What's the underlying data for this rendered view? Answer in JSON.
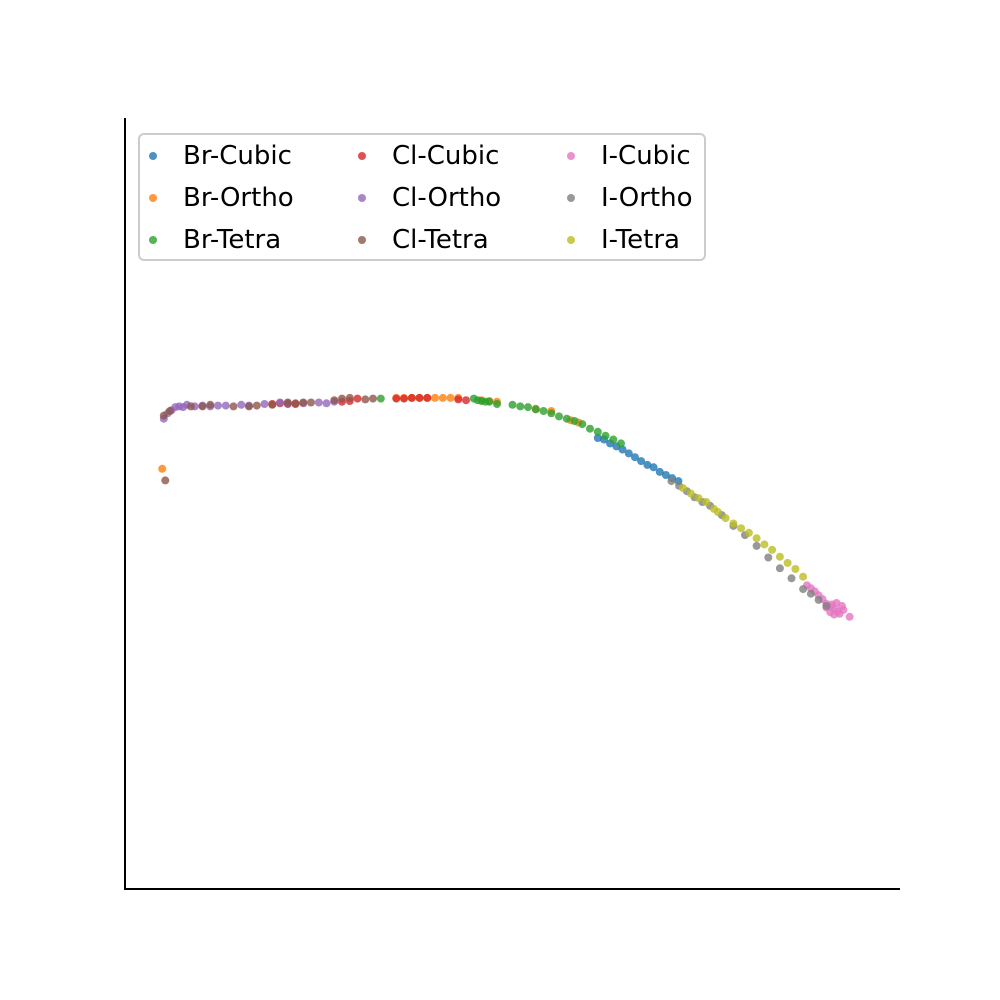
{
  "chart_data": {
    "type": "scatter",
    "title": "",
    "xlabel": "",
    "ylabel": "",
    "xlim": [
      0,
      1
    ],
    "ylim": [
      0,
      1
    ],
    "grid": false,
    "legend": {
      "placement": "top-left",
      "columns": 3
    },
    "series": [
      {
        "name": "Br-Cubic",
        "color": "#1f77b4",
        "points": [
          [
            0.61,
            0.585
          ],
          [
            0.618,
            0.583
          ],
          [
            0.626,
            0.578
          ],
          [
            0.634,
            0.574
          ],
          [
            0.642,
            0.57
          ],
          [
            0.65,
            0.565
          ],
          [
            0.658,
            0.56
          ],
          [
            0.666,
            0.555
          ],
          [
            0.674,
            0.55
          ],
          [
            0.682,
            0.547
          ],
          [
            0.69,
            0.541
          ],
          [
            0.698,
            0.537
          ],
          [
            0.706,
            0.533
          ],
          [
            0.714,
            0.529
          ]
        ]
      },
      {
        "name": "Br-Ortho",
        "color": "#ff7f0e",
        "points": [
          [
            0.048,
            0.545
          ],
          [
            0.35,
            0.637
          ],
          [
            0.36,
            0.637
          ],
          [
            0.37,
            0.637
          ],
          [
            0.38,
            0.637
          ],
          [
            0.39,
            0.637
          ],
          [
            0.4,
            0.637
          ],
          [
            0.41,
            0.637
          ],
          [
            0.42,
            0.637
          ],
          [
            0.43,
            0.637
          ],
          [
            0.46,
            0.634
          ],
          [
            0.47,
            0.633
          ],
          [
            0.48,
            0.632
          ],
          [
            0.53,
            0.623
          ],
          [
            0.55,
            0.62
          ],
          [
            0.575,
            0.608
          ],
          [
            0.585,
            0.605
          ]
        ]
      },
      {
        "name": "Br-Tetra",
        "color": "#2ca02c",
        "points": [
          [
            0.33,
            0.636
          ],
          [
            0.45,
            0.636
          ],
          [
            0.455,
            0.634
          ],
          [
            0.46,
            0.633
          ],
          [
            0.465,
            0.632
          ],
          [
            0.47,
            0.632
          ],
          [
            0.48,
            0.629
          ],
          [
            0.5,
            0.628
          ],
          [
            0.51,
            0.626
          ],
          [
            0.52,
            0.625
          ],
          [
            0.53,
            0.622
          ],
          [
            0.54,
            0.62
          ],
          [
            0.55,
            0.617
          ],
          [
            0.56,
            0.613
          ],
          [
            0.57,
            0.61
          ],
          [
            0.58,
            0.607
          ],
          [
            0.59,
            0.603
          ],
          [
            0.6,
            0.597
          ],
          [
            0.61,
            0.593
          ],
          [
            0.62,
            0.588
          ],
          [
            0.63,
            0.583
          ],
          [
            0.64,
            0.578
          ]
        ]
      },
      {
        "name": "Cl-Cubic",
        "color": "#d62728",
        "points": [
          [
            0.19,
            0.629
          ],
          [
            0.2,
            0.63
          ],
          [
            0.21,
            0.629
          ],
          [
            0.22,
            0.629
          ],
          [
            0.28,
            0.632
          ],
          [
            0.29,
            0.633
          ],
          [
            0.3,
            0.636
          ],
          [
            0.35,
            0.636
          ],
          [
            0.36,
            0.636
          ],
          [
            0.37,
            0.637
          ],
          [
            0.38,
            0.637
          ],
          [
            0.39,
            0.637
          ],
          [
            0.43,
            0.635
          ],
          [
            0.44,
            0.634
          ]
        ]
      },
      {
        "name": "Cl-Ortho",
        "color": "#9467bd",
        "points": [
          [
            0.05,
            0.61
          ],
          [
            0.055,
            0.617
          ],
          [
            0.06,
            0.621
          ],
          [
            0.065,
            0.625
          ],
          [
            0.07,
            0.626
          ],
          [
            0.075,
            0.625
          ],
          [
            0.08,
            0.628
          ],
          [
            0.09,
            0.626
          ],
          [
            0.1,
            0.627
          ],
          [
            0.11,
            0.626
          ],
          [
            0.12,
            0.627
          ],
          [
            0.13,
            0.627
          ],
          [
            0.15,
            0.628
          ],
          [
            0.16,
            0.627
          ],
          [
            0.18,
            0.629
          ],
          [
            0.2,
            0.631
          ],
          [
            0.21,
            0.63
          ],
          [
            0.23,
            0.63
          ],
          [
            0.25,
            0.631
          ],
          [
            0.26,
            0.63
          ],
          [
            0.27,
            0.632
          ]
        ]
      },
      {
        "name": "Cl-Tetra",
        "color": "#8c564b",
        "points": [
          [
            0.052,
            0.53
          ],
          [
            0.05,
            0.614
          ],
          [
            0.058,
            0.62
          ],
          [
            0.085,
            0.626
          ],
          [
            0.1,
            0.626
          ],
          [
            0.11,
            0.628
          ],
          [
            0.14,
            0.626
          ],
          [
            0.16,
            0.626
          ],
          [
            0.17,
            0.627
          ],
          [
            0.19,
            0.628
          ],
          [
            0.21,
            0.631
          ],
          [
            0.22,
            0.63
          ],
          [
            0.23,
            0.631
          ],
          [
            0.24,
            0.631
          ],
          [
            0.27,
            0.634
          ],
          [
            0.28,
            0.636
          ],
          [
            0.29,
            0.637
          ],
          [
            0.31,
            0.635
          ],
          [
            0.32,
            0.636
          ]
        ]
      },
      {
        "name": "I-Cubic",
        "color": "#e377c2",
        "points": [
          [
            0.88,
            0.394
          ],
          [
            0.885,
            0.39
          ],
          [
            0.89,
            0.386
          ],
          [
            0.895,
            0.381
          ],
          [
            0.9,
            0.376
          ],
          [
            0.905,
            0.37
          ],
          [
            0.91,
            0.366
          ],
          [
            0.915,
            0.363
          ],
          [
            0.92,
            0.36
          ],
          [
            0.922,
            0.357
          ],
          [
            0.915,
            0.356
          ],
          [
            0.91,
            0.359
          ],
          [
            0.905,
            0.365
          ],
          [
            0.912,
            0.369
          ],
          [
            0.918,
            0.371
          ],
          [
            0.925,
            0.367
          ],
          [
            0.927,
            0.362
          ],
          [
            0.935,
            0.353
          ]
        ]
      },
      {
        "name": "I-Ortho",
        "color": "#7f7f7f",
        "points": [
          [
            0.705,
            0.529
          ],
          [
            0.715,
            0.523
          ],
          [
            0.725,
            0.516
          ],
          [
            0.735,
            0.508
          ],
          [
            0.745,
            0.502
          ],
          [
            0.755,
            0.497
          ],
          [
            0.77,
            0.485
          ],
          [
            0.785,
            0.471
          ],
          [
            0.8,
            0.459
          ],
          [
            0.815,
            0.445
          ],
          [
            0.83,
            0.43
          ],
          [
            0.845,
            0.416
          ],
          [
            0.86,
            0.403
          ],
          [
            0.875,
            0.389
          ],
          [
            0.885,
            0.383
          ],
          [
            0.895,
            0.375
          ],
          [
            0.905,
            0.367
          ]
        ]
      },
      {
        "name": "I-Tetra",
        "color": "#bcbd22",
        "points": [
          [
            0.72,
            0.52
          ],
          [
            0.73,
            0.513
          ],
          [
            0.74,
            0.507
          ],
          [
            0.75,
            0.502
          ],
          [
            0.76,
            0.493
          ],
          [
            0.765,
            0.489
          ],
          [
            0.775,
            0.481
          ],
          [
            0.785,
            0.474
          ],
          [
            0.795,
            0.468
          ],
          [
            0.805,
            0.462
          ],
          [
            0.815,
            0.455
          ],
          [
            0.825,
            0.447
          ],
          [
            0.835,
            0.44
          ],
          [
            0.845,
            0.431
          ],
          [
            0.855,
            0.423
          ],
          [
            0.865,
            0.415
          ],
          [
            0.875,
            0.405
          ]
        ]
      }
    ]
  }
}
